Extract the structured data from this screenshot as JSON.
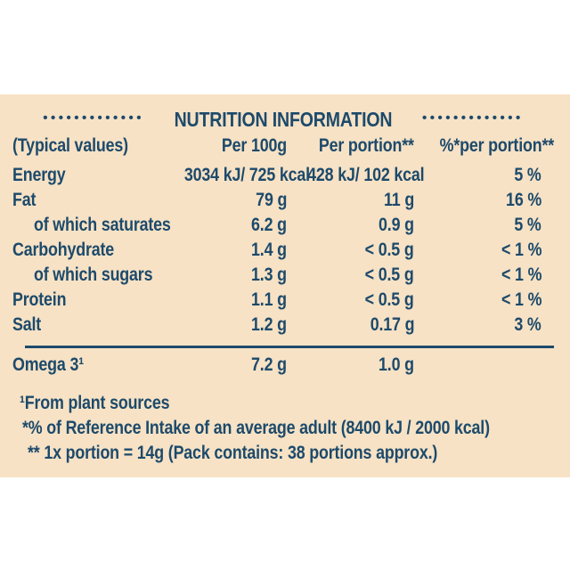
{
  "colors": {
    "panel_background": "#f7e2c5",
    "text": "#1d4a6b",
    "page_background": "#ffffff"
  },
  "panel": {
    "title": "NUTRITION INFORMATION",
    "dots_left": "•••••••••••••",
    "dots_right": "•••••••••••••"
  },
  "table": {
    "columns": {
      "label": "(Typical values)",
      "per_100g": "Per 100g",
      "per_portion": "Per portion**",
      "pct_per_portion": "%*per portion**"
    },
    "rows": [
      {
        "label": "Energy",
        "per_100g": "3034 kJ/ 725 kcal",
        "per_portion": "428 kJ/ 102 kcal",
        "pct_per_portion": "5 %"
      },
      {
        "label": "Fat",
        "per_100g": "79 g",
        "per_portion": "11 g",
        "pct_per_portion": "16 %"
      },
      {
        "label": "of which saturates",
        "per_100g": "6.2 g",
        "per_portion": "0.9 g",
        "pct_per_portion": "5 %"
      },
      {
        "label": "Carbohydrate",
        "per_100g": "1.4 g",
        "per_portion": "< 0.5 g",
        "pct_per_portion": "< 1 %"
      },
      {
        "label": "of which sugars",
        "per_100g": "1.3 g",
        "per_portion": "< 0.5 g",
        "pct_per_portion": "< 1 %"
      },
      {
        "label": "Protein",
        "per_100g": "1.1 g",
        "per_portion": "< 0.5 g",
        "pct_per_portion": "< 1 %"
      },
      {
        "label": "Salt",
        "per_100g": "1.2 g",
        "per_portion": "0.17 g",
        "pct_per_portion": "3 %"
      }
    ],
    "omega_row": {
      "label": "Omega 3¹",
      "per_100g": "7.2 g",
      "per_portion": "1.0 g",
      "pct_per_portion": ""
    }
  },
  "footnotes": [
    "¹From plant sources",
    "*% of Reference Intake of an average adult (8400 kJ / 2000 kcal)",
    "** 1x portion = 14g (Pack contains: 38 portions approx.)"
  ]
}
